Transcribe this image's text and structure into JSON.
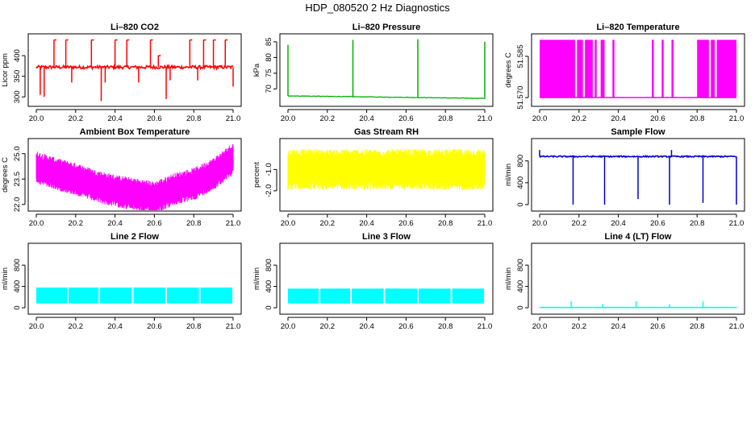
{
  "figure": {
    "title": "HDP_080520  2 Hz Diagnostics",
    "x_range": [
      20.0,
      21.0
    ],
    "x_ticks": [
      "20.0",
      "20.2",
      "20.4",
      "20.6",
      "20.8",
      "21.0"
    ]
  },
  "chart_data": [
    {
      "type": "line",
      "title": "Li–820 CO2",
      "ylabel": "Licor ppm",
      "color": "#ff0000",
      "ylim": [
        285,
        445
      ],
      "yticks": [
        "300",
        "350",
        "400"
      ],
      "series": {
        "kind": "baseline_spikes",
        "baseline": 372,
        "noise": 4,
        "spikes": [
          [
            20.02,
            305
          ],
          [
            20.04,
            300
          ],
          [
            20.09,
            438
          ],
          [
            20.15,
            438
          ],
          [
            20.18,
            335
          ],
          [
            20.28,
            438
          ],
          [
            20.33,
            290
          ],
          [
            20.35,
            335
          ],
          [
            20.4,
            438
          ],
          [
            20.46,
            438
          ],
          [
            20.52,
            335
          ],
          [
            20.58,
            438
          ],
          [
            20.62,
            400
          ],
          [
            20.66,
            295
          ],
          [
            20.68,
            340
          ],
          [
            20.78,
            438
          ],
          [
            20.82,
            340
          ],
          [
            20.85,
            438
          ],
          [
            20.9,
            438
          ],
          [
            20.96,
            438
          ],
          [
            21.0,
            325
          ]
        ]
      }
    },
    {
      "type": "line",
      "title": "Li–820 Pressure",
      "ylabel": "kPa",
      "color": "#00b000",
      "ylim": [
        65.5,
        86.5
      ],
      "yticks": [
        "70",
        "75",
        "80",
        "85"
      ],
      "series": {
        "kind": "drift_spikes",
        "start": 67.8,
        "end": 67.0,
        "spikes": [
          [
            20.0,
            84.0
          ],
          [
            20.33,
            85.6
          ],
          [
            20.66,
            85.8
          ],
          [
            21.0,
            85.0
          ]
        ]
      }
    },
    {
      "type": "bar",
      "title": "Li–820 Temperature",
      "ylabel": "degrees C",
      "color": "#ff00ff",
      "ylim": [
        51.568,
        51.592
      ],
      "yticks": [
        "51.570",
        "51.585"
      ],
      "series": {
        "kind": "two_level",
        "low": 51.57,
        "high": 51.591,
        "high_intervals": [
          [
            20.0,
            20.18
          ],
          [
            20.19,
            20.22
          ],
          [
            20.23,
            20.27
          ],
          [
            20.28,
            20.29
          ],
          [
            20.31,
            20.33
          ],
          [
            20.37,
            20.38
          ],
          [
            20.57,
            20.58
          ],
          [
            20.62,
            20.63
          ],
          [
            20.67,
            20.68
          ],
          [
            20.8,
            20.86
          ],
          [
            20.87,
            20.89
          ],
          [
            20.9,
            21.0
          ]
        ]
      }
    },
    {
      "type": "area",
      "title": "Ambient Box Temperature",
      "ylabel": "degrees C",
      "color": "#ff00ff",
      "ylim": [
        21.8,
        25.7
      ],
      "yticks": [
        "22.0",
        "23.5",
        "25.0"
      ],
      "series": {
        "kind": "band",
        "center": [
          [
            20.0,
            24.2
          ],
          [
            20.1,
            23.8
          ],
          [
            20.2,
            23.5
          ],
          [
            20.3,
            23.1
          ],
          [
            20.4,
            22.8
          ],
          [
            20.5,
            22.6
          ],
          [
            20.6,
            22.4
          ],
          [
            20.7,
            22.9
          ],
          [
            20.8,
            23.2
          ],
          [
            20.9,
            23.8
          ],
          [
            21.0,
            24.7
          ]
        ],
        "half_width": 0.8
      }
    },
    {
      "type": "area",
      "title": "Gas Stream RH",
      "ylabel": "percent",
      "color": "#ffff00",
      "ylim": [
        -2.8,
        0.3
      ],
      "yticks": [
        "-2.0",
        "-1.0"
      ],
      "series": {
        "kind": "band",
        "center": [
          [
            20.0,
            -1.0
          ],
          [
            21.0,
            -1.0
          ]
        ],
        "half_width": 0.8
      }
    },
    {
      "type": "line",
      "title": "Sample Flow",
      "ylabel": "ml/min",
      "color": "#0000cc",
      "ylim": [
        -60,
        1150
      ],
      "yticks": [
        "0",
        "400",
        "800"
      ],
      "series": {
        "kind": "baseline_spikes",
        "baseline": 880,
        "noise": 12,
        "spikes": [
          [
            20.0,
            1000
          ],
          [
            20.17,
            0
          ],
          [
            20.33,
            0
          ],
          [
            20.5,
            100
          ],
          [
            20.66,
            0
          ],
          [
            20.67,
            1000
          ],
          [
            20.83,
            30
          ],
          [
            21.0,
            0
          ]
        ]
      }
    },
    {
      "type": "area",
      "title": "Line 2 Flow",
      "ylabel": "ml/min",
      "color": "#00ffff",
      "ylim": [
        -60,
        1150
      ],
      "yticks": [
        "0",
        "400",
        "800"
      ],
      "series": {
        "kind": "blocks",
        "low": 80,
        "high": 380,
        "gaps": [
          20.16,
          20.32,
          20.49,
          20.66,
          20.83
        ]
      }
    },
    {
      "type": "area",
      "title": "Line 3 Flow",
      "ylabel": "ml/min",
      "color": "#00ffff",
      "ylim": [
        -60,
        1150
      ],
      "yticks": [
        "0",
        "400",
        "800"
      ],
      "series": {
        "kind": "blocks",
        "low": 80,
        "high": 360,
        "gaps": [
          20.16,
          20.32,
          20.49,
          20.66,
          20.83
        ]
      }
    },
    {
      "type": "line",
      "title": "Line 4 (LT) Flow",
      "ylabel": "ml/min",
      "color": "#00ffff",
      "ylim": [
        -60,
        1150
      ],
      "yticks": [
        "0",
        "400",
        "800"
      ],
      "series": {
        "kind": "baseline_spikes",
        "baseline": 5,
        "noise": 0,
        "spikes": [
          [
            20.16,
            120
          ],
          [
            20.32,
            70
          ],
          [
            20.49,
            120
          ],
          [
            20.66,
            70
          ],
          [
            20.83,
            120
          ],
          [
            21.0,
            20
          ]
        ]
      }
    }
  ]
}
